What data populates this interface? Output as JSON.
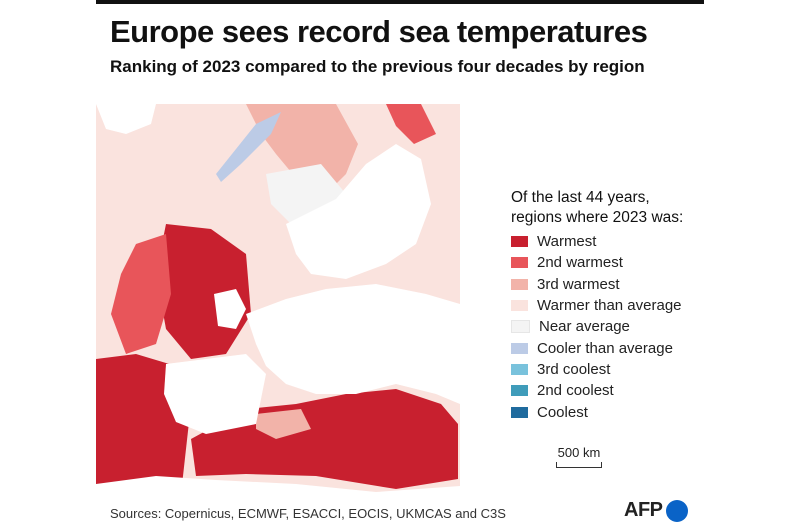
{
  "header": {
    "title": "Europe sees record sea temperatures",
    "subtitle": "Ranking of 2023 compared to the previous four decades by region"
  },
  "legend": {
    "title_line1": "Of the last 44 years,",
    "title_line2": "regions where 2023 was:",
    "items": [
      {
        "label": "Warmest",
        "color": "#c8202f"
      },
      {
        "label": "2nd warmest",
        "color": "#e8555a"
      },
      {
        "label": "3rd warmest",
        "color": "#f2b3a9"
      },
      {
        "label": "Warmer than average",
        "color": "#fae3de"
      },
      {
        "label": "Near average",
        "color": "#f4f4f4"
      },
      {
        "label": "Cooler than average",
        "color": "#bccbe6"
      },
      {
        "label": "3rd coolest",
        "color": "#79c2dc"
      },
      {
        "label": "2nd coolest",
        "color": "#3f9cba"
      },
      {
        "label": "Coolest",
        "color": "#1f6b9e"
      }
    ]
  },
  "scale_bar": {
    "label": "500 km"
  },
  "footer": {
    "sources": "Sources: Copernicus, ECMWF, ESACCI, EOCIS, UKMCAS and C3S",
    "logo_text": "AFP"
  },
  "colors": {
    "land": "#ffffff",
    "background": "#ffffff",
    "header_bar": "#111111",
    "logo_dot": "#0a63c7"
  }
}
